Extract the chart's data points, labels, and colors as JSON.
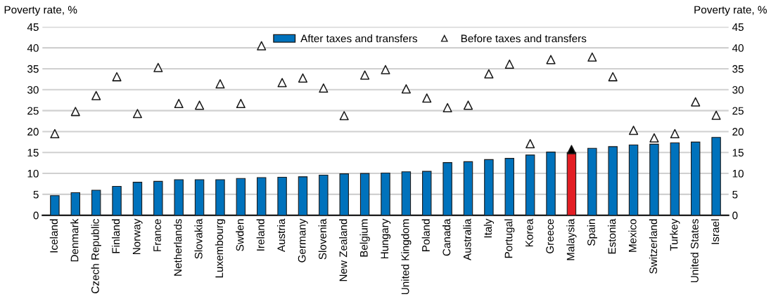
{
  "chart_data": {
    "type": "bar",
    "ylabel": "Poverty rate, %",
    "y2label": "Poverty rate, %",
    "categories": [
      "Iceland",
      "Denmark",
      "Czech Republic",
      "Finland",
      "Norway",
      "France",
      "Netherlands",
      "Slovakia",
      "Luxembourg",
      "Swden",
      "Ireland",
      "Austria",
      "Germany",
      "Slovenia",
      "New Zealand",
      "Belgium",
      "Hungary",
      "United Kingdom",
      "Poland",
      "Canada",
      "Australia",
      "Italy",
      "Portugal",
      "Korea",
      "Greece",
      "Malaysia",
      "Spain",
      "Estonia",
      "Mexico",
      "Switzerland",
      "Turkey",
      "United States",
      "Israel"
    ],
    "series": [
      {
        "name": "After taxes and transfers",
        "color": "#0072bc",
        "colors": [
          "#0072bc",
          "#0072bc",
          "#0072bc",
          "#0072bc",
          "#0072bc",
          "#0072bc",
          "#0072bc",
          "#0072bc",
          "#0072bc",
          "#0072bc",
          "#0072bc",
          "#0072bc",
          "#0072bc",
          "#0072bc",
          "#0072bc",
          "#0072bc",
          "#0072bc",
          "#0072bc",
          "#0072bc",
          "#0072bc",
          "#0072bc",
          "#0072bc",
          "#0072bc",
          "#0072bc",
          "#0072bc",
          "#e31e24",
          "#0072bc",
          "#0072bc",
          "#0072bc",
          "#0072bc",
          "#0072bc",
          "#0072bc",
          "#0072bc"
        ],
        "values": [
          4.7,
          5.4,
          6.0,
          6.9,
          7.9,
          8.1,
          8.5,
          8.5,
          8.5,
          8.8,
          9.0,
          9.1,
          9.2,
          9.6,
          9.9,
          10.0,
          10.1,
          10.4,
          10.5,
          12.6,
          12.8,
          13.3,
          13.6,
          14.4,
          15.1,
          15.0,
          16.0,
          16.4,
          16.8,
          17.0,
          17.3,
          17.5,
          18.6
        ]
      },
      {
        "name": "Before taxes and transfers",
        "type": "scatter",
        "marker": "triangle",
        "color": "#ffffff",
        "colors": [
          "#ffffff",
          "#ffffff",
          "#ffffff",
          "#ffffff",
          "#ffffff",
          "#ffffff",
          "#ffffff",
          "#ffffff",
          "#ffffff",
          "#ffffff",
          "#ffffff",
          "#ffffff",
          "#ffffff",
          "#ffffff",
          "#ffffff",
          "#ffffff",
          "#ffffff",
          "#ffffff",
          "#ffffff",
          "#ffffff",
          "#ffffff",
          "#ffffff",
          "#ffffff",
          "#ffffff",
          "#ffffff",
          "#000000",
          "#ffffff",
          "#ffffff",
          "#ffffff",
          "#ffffff",
          "#ffffff",
          "#ffffff",
          "#ffffff"
        ],
        "values": [
          19.5,
          24.8,
          28.6,
          33.1,
          24.3,
          35.3,
          26.7,
          26.3,
          31.4,
          26.7,
          40.5,
          31.7,
          32.8,
          30.4,
          23.8,
          33.5,
          34.8,
          30.2,
          28.0,
          25.7,
          26.3,
          33.8,
          36.1,
          17.1,
          37.2,
          15.7,
          37.8,
          33.1,
          20.3,
          18.5,
          19.5,
          27.1,
          23.9
        ]
      }
    ],
    "ylim": [
      0,
      45
    ],
    "yticks": [
      0,
      5,
      10,
      15,
      20,
      25,
      30,
      35,
      40,
      45
    ],
    "y2lim": [
      0,
      45
    ],
    "y2ticks": [
      0,
      5,
      10,
      15,
      20,
      25,
      30,
      35,
      40,
      45
    ],
    "grid": "y",
    "legend": "top"
  }
}
